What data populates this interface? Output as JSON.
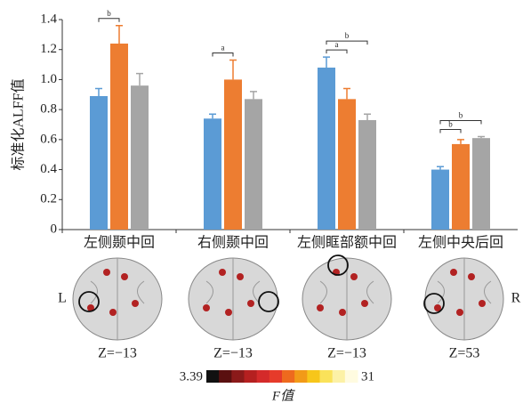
{
  "chart_data": {
    "type": "bar",
    "y_label": "标准化ALFF值",
    "categories": [
      "左侧颞中回",
      "右侧颞中回",
      "左侧眶部额中回",
      "左侧中央后回"
    ],
    "series": [
      {
        "color": "#5b9bd5",
        "values": [
          0.89,
          0.74,
          1.08,
          0.4
        ],
        "errors": [
          0.05,
          0.03,
          0.07,
          0.02
        ]
      },
      {
        "color": "#ed7d31",
        "values": [
          1.24,
          1.0,
          0.87,
          0.57
        ],
        "errors": [
          0.12,
          0.13,
          0.07,
          0.03
        ]
      },
      {
        "color": "#a5a5a5",
        "values": [
          0.96,
          0.87,
          0.73,
          0.61
        ],
        "errors": [
          0.08,
          0.05,
          0.04,
          0.01
        ]
      }
    ],
    "significance": [
      [
        {
          "label": "b",
          "pair": [
            0,
            1
          ]
        }
      ],
      [
        {
          "label": "a",
          "pair": [
            0,
            1
          ]
        }
      ],
      [
        {
          "label": "a",
          "pair": [
            0,
            1
          ]
        },
        {
          "label": "b",
          "pair": [
            0,
            2
          ]
        }
      ],
      [
        {
          "label": "b",
          "pair": [
            0,
            1
          ]
        },
        {
          "label": "b",
          "pair": [
            0,
            2
          ]
        }
      ]
    ],
    "ylim": [
      0,
      1.4
    ],
    "yticks": [
      0,
      {
        "value": 0.2,
        "label": "0.2"
      },
      {
        "value": 0.4,
        "label": "0.4"
      },
      {
        "value": 0.6,
        "label": "0.6"
      },
      {
        "value": 0.8,
        "label": "0.8"
      },
      {
        "value": 1.0,
        "label": "1.0"
      },
      {
        "value": 1.2,
        "label": "1.2"
      },
      {
        "value": 1.4,
        "label": "1.4"
      }
    ]
  },
  "brain_panels": [
    "Z=−13",
    "Z=−13",
    "Z=−13",
    "Z=53"
  ],
  "side_labels": [
    "L",
    "R"
  ],
  "colorbar": {
    "min": 3.39,
    "max": 31,
    "label": "F值",
    "colors": [
      "#111111",
      "#5a1010",
      "#8b1a1a",
      "#b52020",
      "#d42a2a",
      "#e63b2a",
      "#ee6a1e",
      "#f29a18",
      "#f7c61a",
      "#fae25a",
      "#fcf1a6",
      "#fffbe0"
    ]
  }
}
